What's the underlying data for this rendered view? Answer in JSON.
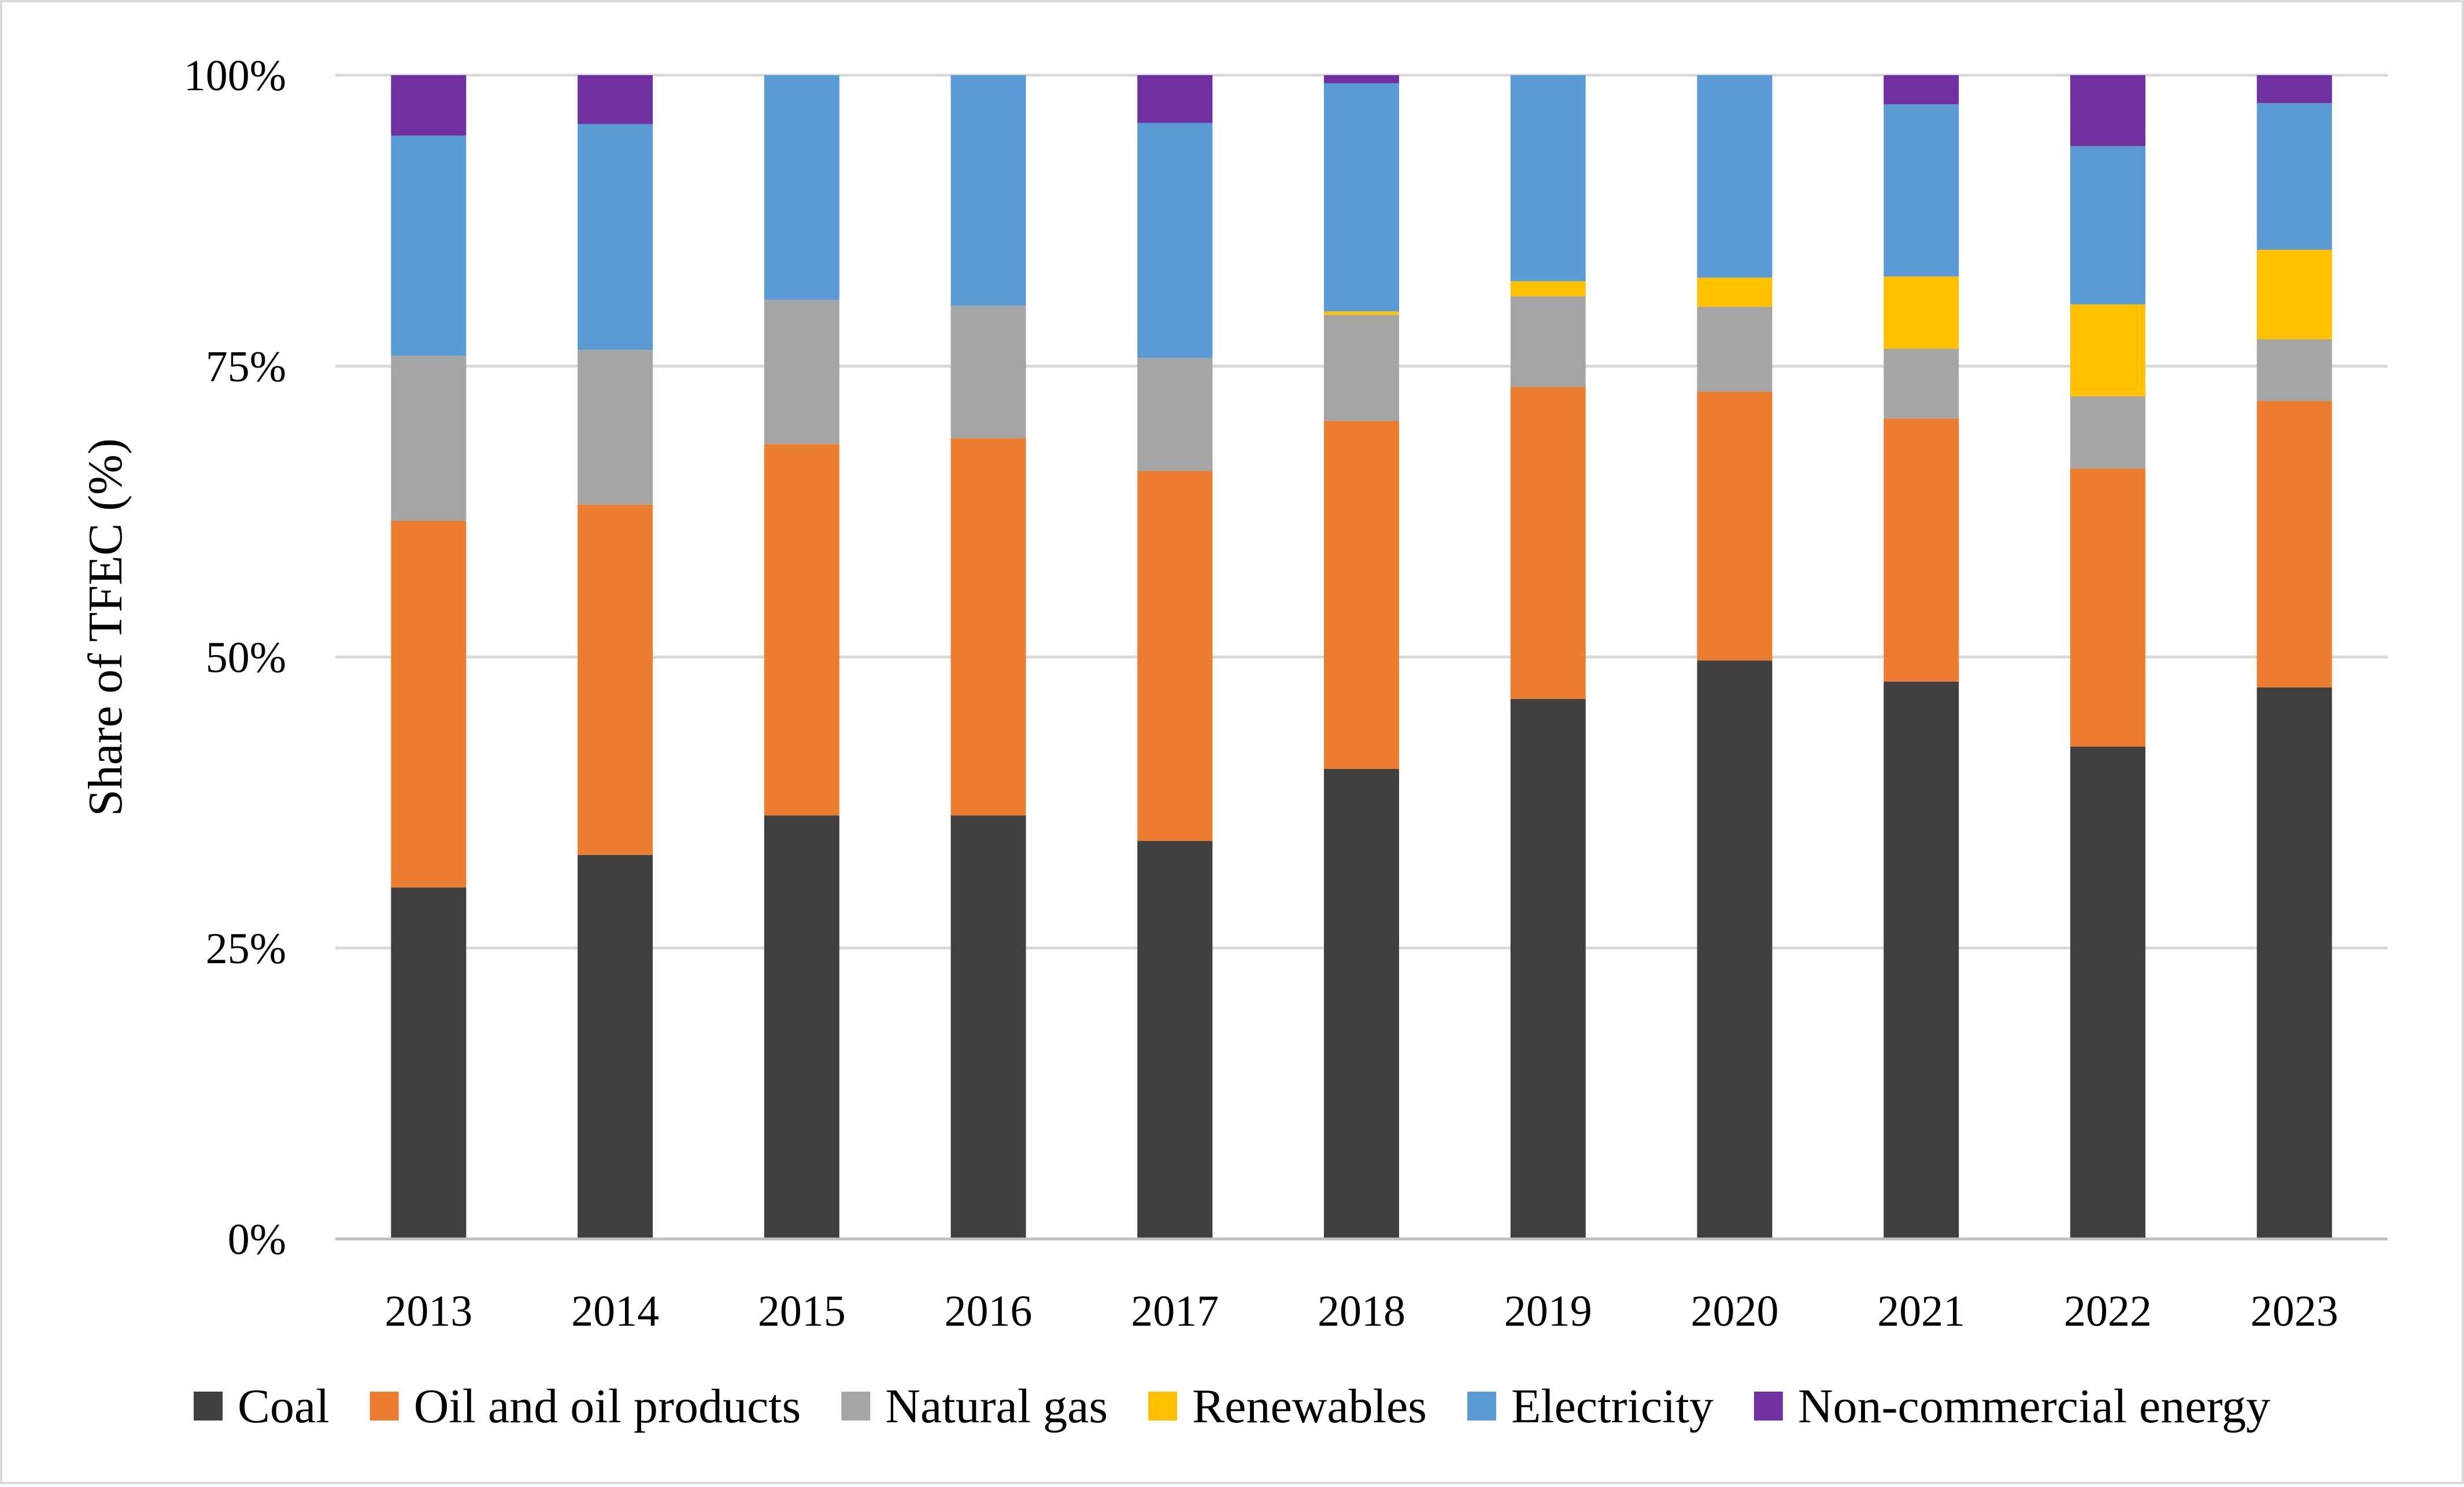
{
  "chart_data": {
    "type": "bar",
    "stacked": true,
    "title": "",
    "xlabel": "",
    "ylabel": "Share of TFEC (%)",
    "ylim": [
      0,
      100
    ],
    "y_ticks": [
      {
        "value": 0,
        "label": "0%"
      },
      {
        "value": 25,
        "label": "25%"
      },
      {
        "value": 50,
        "label": "50%"
      },
      {
        "value": 75,
        "label": "75%"
      },
      {
        "value": 100,
        "label": "100%"
      }
    ],
    "grid": true,
    "legend_position": "bottom",
    "categories": [
      "2013",
      "2014",
      "2015",
      "2016",
      "2017",
      "2018",
      "2019",
      "2020",
      "2021",
      "2022",
      "2023"
    ],
    "series": [
      {
        "name": "Coal",
        "color": "#404040",
        "values": [
          30.2,
          33.0,
          36.4,
          36.4,
          34.2,
          40.4,
          46.4,
          49.7,
          47.9,
          42.3,
          47.4
        ]
      },
      {
        "name": "Oil and oil products",
        "color": "#ED7D31",
        "values": [
          31.5,
          30.1,
          31.9,
          32.4,
          31.8,
          29.9,
          26.8,
          23.1,
          22.6,
          23.9,
          24.6
        ]
      },
      {
        "name": "Natural gas",
        "color": "#A5A5A5",
        "values": [
          14.2,
          13.3,
          12.4,
          11.4,
          9.7,
          9.1,
          7.8,
          7.3,
          6.0,
          6.2,
          5.3
        ]
      },
      {
        "name": "Renewables",
        "color": "#FFC000",
        "values": [
          0,
          0,
          0,
          0,
          0,
          0.3,
          1.3,
          2.5,
          6.2,
          7.9,
          7.7
        ]
      },
      {
        "name": "Electricity",
        "color": "#5B9BD5",
        "values": [
          18.9,
          19.4,
          19.3,
          19.8,
          20.2,
          19.6,
          17.7,
          17.4,
          14.8,
          13.6,
          12.6
        ]
      },
      {
        "name": "Non-commercial energy",
        "color": "#7030A0",
        "values": [
          5.2,
          4.2,
          0,
          0,
          4.1,
          0.7,
          0,
          0,
          2.5,
          6.1,
          2.4
        ]
      }
    ],
    "colors": {
      "gridline": "#D9D9D9",
      "axis": "#BFBFBF",
      "frame": "#D9D9D9"
    }
  }
}
